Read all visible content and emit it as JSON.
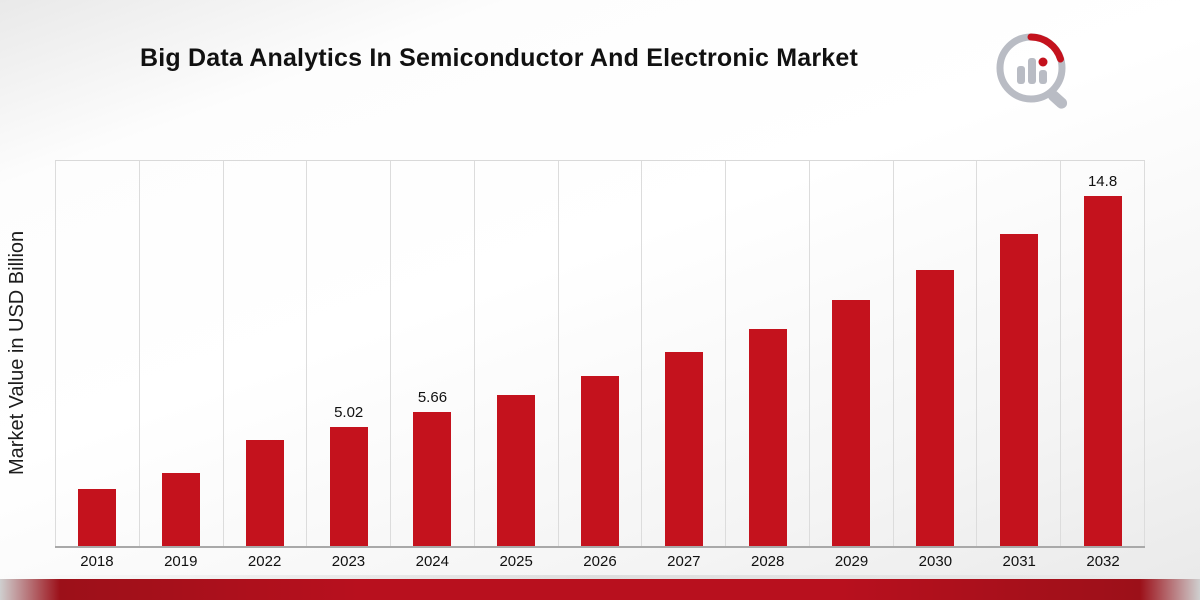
{
  "page": {
    "title": "Big Data Analytics In Semiconductor And Electronic Market"
  },
  "logo": {
    "name": "market-research-bar-chart-magnifier-logo"
  },
  "chart_data": {
    "type": "bar",
    "title": "Big Data Analytics In Semiconductor And Electronic Market",
    "xlabel": "",
    "ylabel": "Market Value in USD Billion",
    "categories": [
      "2018",
      "2019",
      "2022",
      "2023",
      "2024",
      "2025",
      "2026",
      "2027",
      "2028",
      "2029",
      "2030",
      "2031",
      "2032"
    ],
    "values": [
      2.4,
      3.1,
      4.5,
      5.02,
      5.66,
      6.4,
      7.2,
      8.2,
      9.2,
      10.4,
      11.7,
      13.2,
      14.8
    ],
    "data_labels": [
      "",
      "",
      "",
      "5.02",
      "5.66",
      "",
      "",
      "",
      "",
      "",
      "",
      "",
      "14.8"
    ],
    "bar_color": "#c4121d",
    "ylim": [
      0,
      16.3
    ],
    "gridlines": "vertical",
    "legend": false
  }
}
